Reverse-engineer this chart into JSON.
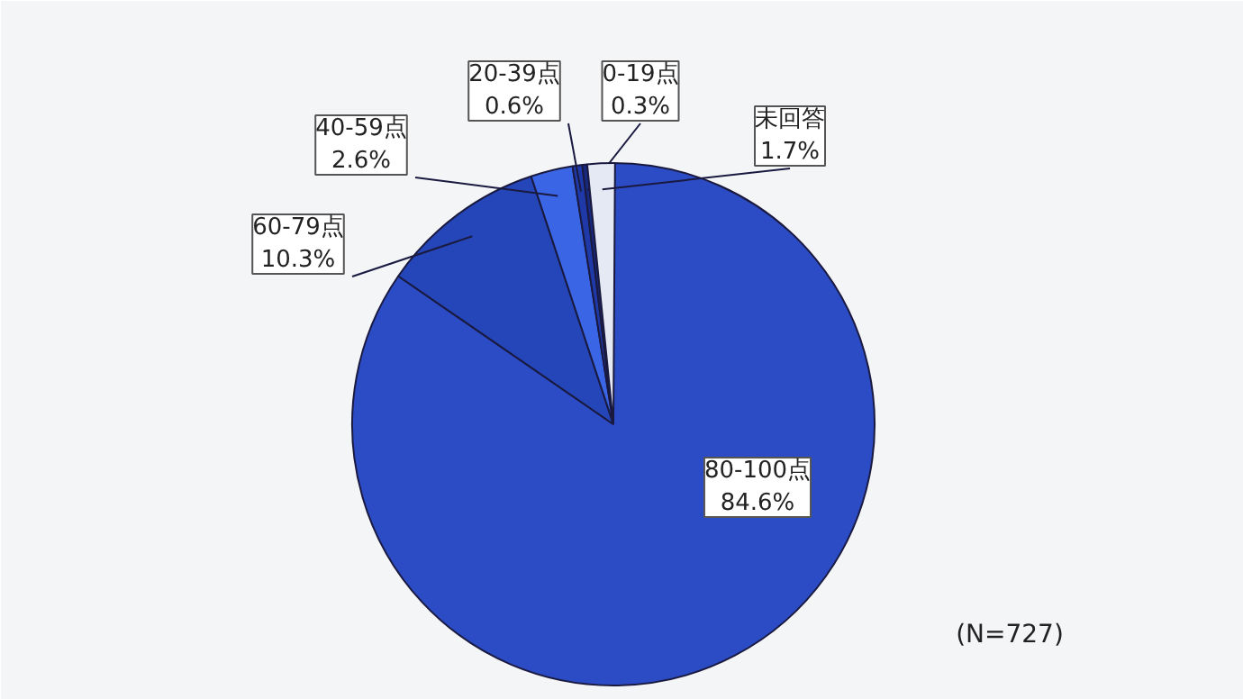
{
  "chart_data": {
    "type": "pie",
    "categories": [
      "80-100点",
      "60-79点",
      "40-59点",
      "20-39点",
      "0-19点",
      "未回答"
    ],
    "values": [
      84.6,
      10.3,
      2.6,
      0.6,
      0.3,
      1.7
    ],
    "colors": [
      "#2b4cc4",
      "#2446b8",
      "#3a66e6",
      "#1f3aa8",
      "#182a80",
      "#e4e9f4"
    ],
    "value_labels": [
      "84.6%",
      "10.3%",
      "2.6%",
      "0.6%",
      "0.3%",
      "1.7%"
    ],
    "annotations": [
      "(N=727)"
    ]
  }
}
